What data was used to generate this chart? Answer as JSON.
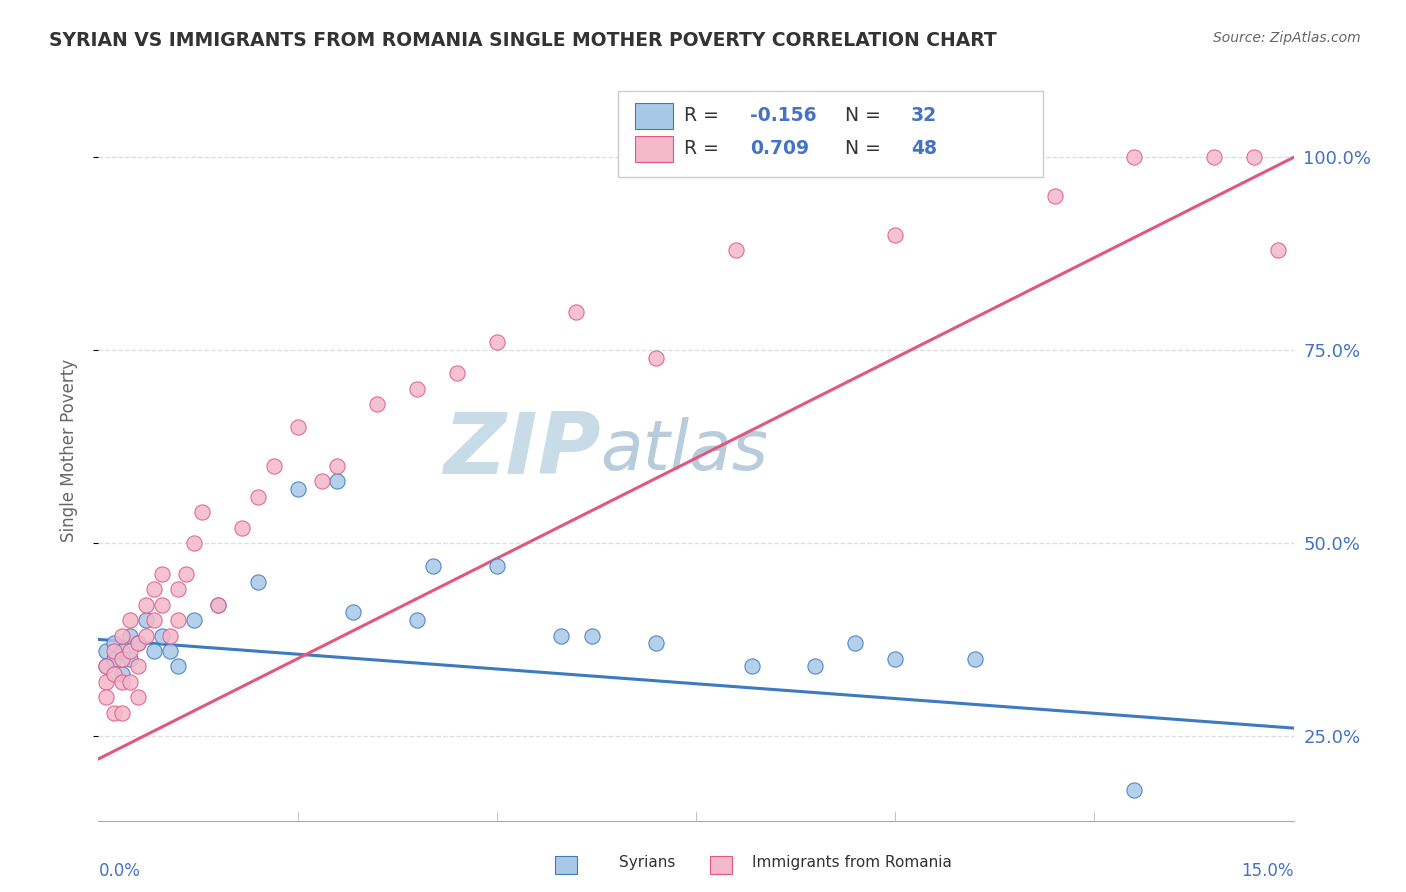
{
  "title": "SYRIAN VS IMMIGRANTS FROM ROMANIA SINGLE MOTHER POVERTY CORRELATION CHART",
  "source": "Source: ZipAtlas.com",
  "ylabel": "Single Mother Poverty",
  "legend_syrians": "Syrians",
  "legend_romania": "Immigrants from Romania",
  "syrians_R": -0.156,
  "syrians_N": 32,
  "romania_R": 0.709,
  "romania_N": 48,
  "blue_color": "#a8c8e8",
  "pink_color": "#f4b8cb",
  "blue_line_color": "#3d7abf",
  "pink_line_color": "#e05880",
  "watermark_zip": "ZIP",
  "watermark_atlas": "atlas",
  "watermark_color_zip": "#c8dce8",
  "watermark_color_atlas": "#b8ccdc",
  "title_color": "#333333",
  "axis_label_color": "#4472C4",
  "grid_color": "#dddddd",
  "xmin": 0.0,
  "xmax": 0.15,
  "ymin": 0.14,
  "ymax": 1.1,
  "syrians_x": [
    0.001,
    0.001,
    0.002,
    0.002,
    0.003,
    0.003,
    0.004,
    0.004,
    0.005,
    0.006,
    0.007,
    0.008,
    0.009,
    0.01,
    0.012,
    0.015,
    0.02,
    0.025,
    0.03,
    0.032,
    0.04,
    0.042,
    0.05,
    0.058,
    0.062,
    0.07,
    0.082,
    0.09,
    0.095,
    0.1,
    0.11,
    0.13
  ],
  "syrians_y": [
    0.36,
    0.34,
    0.37,
    0.35,
    0.36,
    0.33,
    0.38,
    0.35,
    0.37,
    0.4,
    0.36,
    0.38,
    0.36,
    0.34,
    0.4,
    0.42,
    0.45,
    0.57,
    0.58,
    0.41,
    0.4,
    0.47,
    0.47,
    0.38,
    0.38,
    0.37,
    0.34,
    0.34,
    0.37,
    0.35,
    0.35,
    0.18
  ],
  "romania_x": [
    0.001,
    0.001,
    0.001,
    0.002,
    0.002,
    0.002,
    0.003,
    0.003,
    0.003,
    0.003,
    0.004,
    0.004,
    0.004,
    0.005,
    0.005,
    0.005,
    0.006,
    0.006,
    0.007,
    0.007,
    0.008,
    0.008,
    0.009,
    0.01,
    0.01,
    0.011,
    0.012,
    0.013,
    0.015,
    0.018,
    0.02,
    0.022,
    0.025,
    0.028,
    0.03,
    0.035,
    0.04,
    0.045,
    0.05,
    0.06,
    0.07,
    0.08,
    0.1,
    0.12,
    0.13,
    0.14,
    0.145,
    0.148
  ],
  "romania_y": [
    0.34,
    0.32,
    0.3,
    0.36,
    0.33,
    0.28,
    0.38,
    0.35,
    0.32,
    0.28,
    0.4,
    0.36,
    0.32,
    0.37,
    0.34,
    0.3,
    0.42,
    0.38,
    0.44,
    0.4,
    0.46,
    0.42,
    0.38,
    0.44,
    0.4,
    0.46,
    0.5,
    0.54,
    0.42,
    0.52,
    0.56,
    0.6,
    0.65,
    0.58,
    0.6,
    0.68,
    0.7,
    0.72,
    0.76,
    0.8,
    0.74,
    0.88,
    0.9,
    0.95,
    1.0,
    1.0,
    1.0,
    0.88
  ],
  "syria_line_x0": 0.0,
  "syria_line_x1": 0.15,
  "syria_line_y0": 0.375,
  "syria_line_y1": 0.26,
  "romania_line_x0": 0.0,
  "romania_line_x1": 0.15,
  "romania_line_y0": 0.22,
  "romania_line_y1": 1.0
}
